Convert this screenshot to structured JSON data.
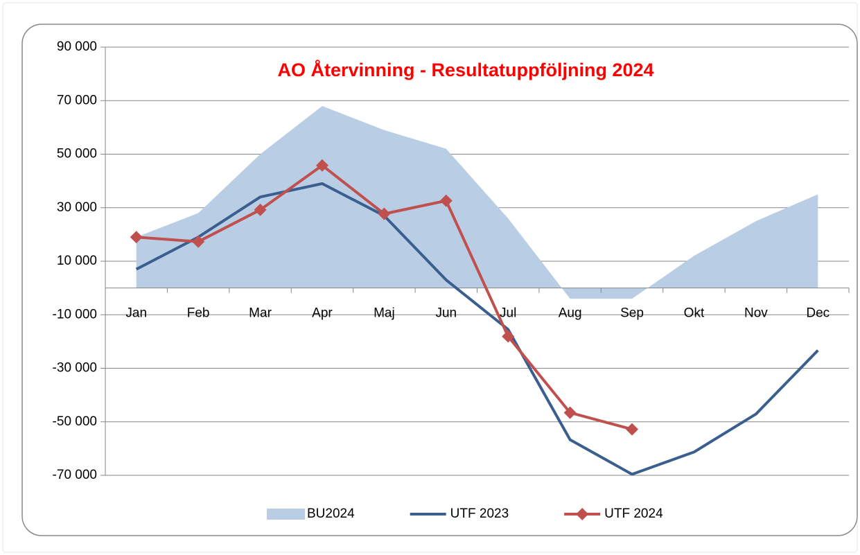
{
  "chart_data": {
    "type": "line",
    "title": "AO Återvinning - Resultatuppföljning  2024",
    "categories": [
      "Jan",
      "Feb",
      "Mar",
      "Apr",
      "Maj",
      "Jun",
      "Jul",
      "Aug",
      "Sep",
      "Okt",
      "Nov",
      "Dec"
    ],
    "series": [
      {
        "name": "BU2024",
        "type": "area",
        "color": "#b9cde5",
        "values": [
          19000,
          28000,
          50000,
          68000,
          59000,
          52000,
          26000,
          -4000,
          -4000,
          12000,
          25000,
          35000
        ]
      },
      {
        "name": "UTF 2023",
        "type": "line",
        "color": "#3a5f8f",
        "values": [
          7000,
          19000,
          34000,
          39000,
          27000,
          3000,
          -15500,
          -56700,
          -69600,
          -61300,
          -47100,
          -23300
        ]
      },
      {
        "name": "UTF 2024",
        "type": "line",
        "color": "#c0504d",
        "marker": "diamond",
        "values": [
          19000,
          17300,
          29200,
          45800,
          27700,
          32600,
          -18100,
          -46600,
          -52800,
          null,
          null,
          null
        ]
      }
    ],
    "ylim": [
      -70000,
      90000
    ],
    "yticks": [
      {
        "value": -70000,
        "label": "-70 000"
      },
      {
        "value": -50000,
        "label": "-50 000"
      },
      {
        "value": -30000,
        "label": "-30 000"
      },
      {
        "value": -10000,
        "label": "-10 000"
      },
      {
        "value": 10000,
        "label": "10 000"
      },
      {
        "value": 30000,
        "label": "30 000"
      },
      {
        "value": 50000,
        "label": "50 000"
      },
      {
        "value": 70000,
        "label": "70 000"
      },
      {
        "value": 90000,
        "label": "90 000"
      }
    ],
    "grid": true,
    "legend": "bottom"
  }
}
